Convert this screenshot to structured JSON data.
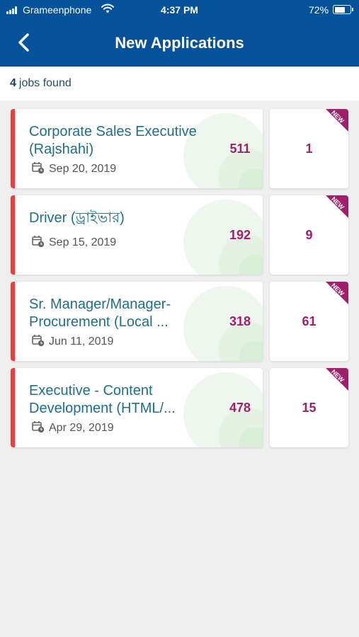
{
  "status_bar": {
    "carrier": "Grameenphone",
    "time": "4:37 PM",
    "battery": "72%",
    "battery_level": 0.72
  },
  "nav": {
    "title": "New Applications",
    "back_icon": "chevron-left-icon"
  },
  "summary": {
    "count": "4",
    "label": "jobs found"
  },
  "theme": {
    "header_color": "#05519a",
    "accent_red": "#ee3b3b",
    "count_color": "#a01f6b",
    "title_color": "#1d6f8a"
  },
  "jobs": [
    {
      "title": "Corporate Sales Executive (Rajshahi)",
      "date": "Sep 20, 2019",
      "applicants": "511",
      "new": "1",
      "badge": "NEW"
    },
    {
      "title": "Driver (ড্রাইভার)",
      "date": "Sep 15, 2019",
      "applicants": "192",
      "new": "9",
      "badge": "NEW"
    },
    {
      "title": "Sr. Manager/Manager-Procurement (Local ...",
      "date": "Jun 11, 2019",
      "applicants": "318",
      "new": "61",
      "badge": "NEW"
    },
    {
      "title": "Executive - Content Development (HTML/...",
      "date": "Apr 29, 2019",
      "applicants": "478",
      "new": "15",
      "badge": "NEW"
    }
  ]
}
